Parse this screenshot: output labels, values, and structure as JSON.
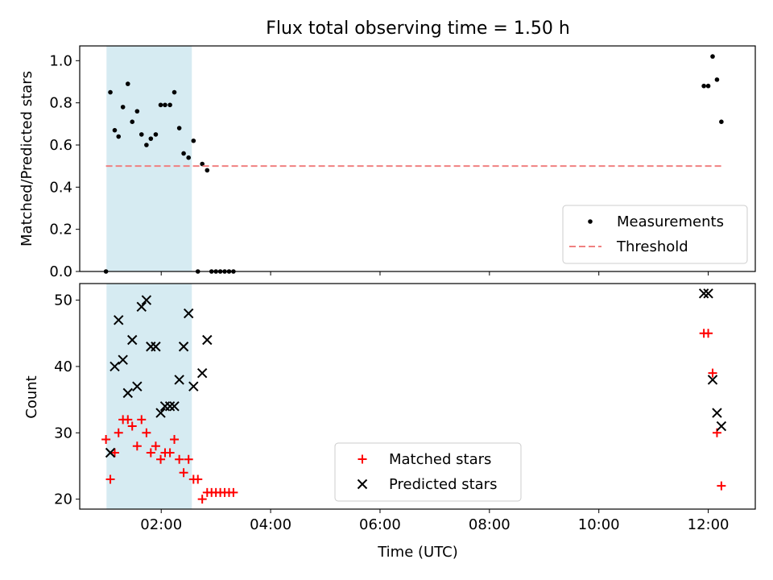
{
  "chart_data": {
    "type": "scatter",
    "title": "Flux total observing time = 1.50 h",
    "xlabel": "Time (UTC)",
    "x_unit": "hours (UTC)",
    "xlim": [
      0.51,
      12.86
    ],
    "x_ticks": [
      {
        "value": 2,
        "label": "02:00"
      },
      {
        "value": 4,
        "label": "04:00"
      },
      {
        "value": 6,
        "label": "06:00"
      },
      {
        "value": 8,
        "label": "08:00"
      },
      {
        "value": 10,
        "label": "10:00"
      },
      {
        "value": 12,
        "label": "12:00"
      }
    ],
    "shaded_span": {
      "x": [
        1.0,
        2.56
      ],
      "color": "#add8e6"
    },
    "top_panel": {
      "ylabel": "Matched/Predicted stars",
      "ylim": [
        0.0,
        1.07
      ],
      "y_ticks": [
        {
          "value": 0.0,
          "label": "0.0"
        },
        {
          "value": 0.2,
          "label": "0.2"
        },
        {
          "value": 0.4,
          "label": "0.4"
        },
        {
          "value": 0.6,
          "label": "0.6"
        },
        {
          "value": 0.8,
          "label": "0.8"
        },
        {
          "value": 1.0,
          "label": "1.0"
        }
      ],
      "legend_position": "lower right",
      "series": [
        {
          "name": "Measurements",
          "kind": "scatter",
          "marker": "dot",
          "color": "#000000",
          "points": [
            [
              0.99,
              0.0
            ],
            [
              1.07,
              0.85
            ],
            [
              1.15,
              0.67
            ],
            [
              1.22,
              0.64
            ],
            [
              1.3,
              0.78
            ],
            [
              1.39,
              0.89
            ],
            [
              1.47,
              0.71
            ],
            [
              1.56,
              0.76
            ],
            [
              1.64,
              0.65
            ],
            [
              1.73,
              0.6
            ],
            [
              1.81,
              0.63
            ],
            [
              1.9,
              0.65
            ],
            [
              1.99,
              0.79
            ],
            [
              2.07,
              0.79
            ],
            [
              2.16,
              0.79
            ],
            [
              2.24,
              0.85
            ],
            [
              2.33,
              0.68
            ],
            [
              2.41,
              0.56
            ],
            [
              2.5,
              0.54
            ],
            [
              2.59,
              0.62
            ],
            [
              2.67,
              0.0
            ],
            [
              2.75,
              0.51
            ],
            [
              2.84,
              0.48
            ],
            [
              2.92,
              0.0
            ],
            [
              3.0,
              0.0
            ],
            [
              3.08,
              0.0
            ],
            [
              3.16,
              0.0
            ],
            [
              3.24,
              0.0
            ],
            [
              3.32,
              0.0
            ],
            [
              11.92,
              0.88
            ],
            [
              12.0,
              0.88
            ],
            [
              12.08,
              1.02
            ],
            [
              12.16,
              0.91
            ],
            [
              12.24,
              0.71
            ]
          ]
        },
        {
          "name": "Threshold",
          "kind": "line",
          "style": "dashed",
          "color": "#f08080",
          "points": [
            [
              0.99,
              0.5
            ],
            [
              12.24,
              0.5
            ]
          ]
        }
      ]
    },
    "bottom_panel": {
      "ylabel": "Count",
      "ylim": [
        18.5,
        52.5
      ],
      "y_ticks": [
        {
          "value": 20,
          "label": "20"
        },
        {
          "value": 30,
          "label": "30"
        },
        {
          "value": 40,
          "label": "40"
        },
        {
          "value": 50,
          "label": "50"
        }
      ],
      "legend_position": "lower center",
      "series": [
        {
          "name": "Matched stars",
          "kind": "scatter",
          "marker": "plus",
          "color": "#ff0000",
          "points": [
            [
              0.99,
              29
            ],
            [
              1.07,
              23
            ],
            [
              1.15,
              27
            ],
            [
              1.22,
              30
            ],
            [
              1.3,
              32
            ],
            [
              1.39,
              32
            ],
            [
              1.47,
              31
            ],
            [
              1.56,
              28
            ],
            [
              1.64,
              32
            ],
            [
              1.73,
              30
            ],
            [
              1.81,
              27
            ],
            [
              1.9,
              28
            ],
            [
              1.99,
              26
            ],
            [
              2.07,
              27
            ],
            [
              2.16,
              27
            ],
            [
              2.24,
              29
            ],
            [
              2.33,
              26
            ],
            [
              2.41,
              24
            ],
            [
              2.5,
              26
            ],
            [
              2.59,
              23
            ],
            [
              2.67,
              23
            ],
            [
              2.75,
              20
            ],
            [
              2.84,
              21
            ],
            [
              2.92,
              21
            ],
            [
              3.0,
              21
            ],
            [
              3.08,
              21
            ],
            [
              3.16,
              21
            ],
            [
              3.24,
              21
            ],
            [
              3.32,
              21
            ],
            [
              11.92,
              45
            ],
            [
              12.0,
              45
            ],
            [
              12.08,
              39
            ],
            [
              12.16,
              30
            ],
            [
              12.24,
              22
            ]
          ]
        },
        {
          "name": "Predicted stars",
          "kind": "scatter",
          "marker": "x",
          "color": "#000000",
          "points": [
            [
              1.07,
              27
            ],
            [
              1.15,
              40
            ],
            [
              1.22,
              47
            ],
            [
              1.3,
              41
            ],
            [
              1.39,
              36
            ],
            [
              1.47,
              44
            ],
            [
              1.56,
              37
            ],
            [
              1.64,
              49
            ],
            [
              1.73,
              50
            ],
            [
              1.81,
              43
            ],
            [
              1.9,
              43
            ],
            [
              1.99,
              33
            ],
            [
              2.07,
              34
            ],
            [
              2.16,
              34
            ],
            [
              2.24,
              34
            ],
            [
              2.33,
              38
            ],
            [
              2.41,
              43
            ],
            [
              2.5,
              48
            ],
            [
              2.59,
              37
            ],
            [
              2.75,
              39
            ],
            [
              2.84,
              44
            ],
            [
              11.92,
              51
            ],
            [
              12.0,
              51
            ],
            [
              12.08,
              38
            ],
            [
              12.16,
              33
            ],
            [
              12.24,
              31
            ]
          ]
        }
      ]
    }
  }
}
